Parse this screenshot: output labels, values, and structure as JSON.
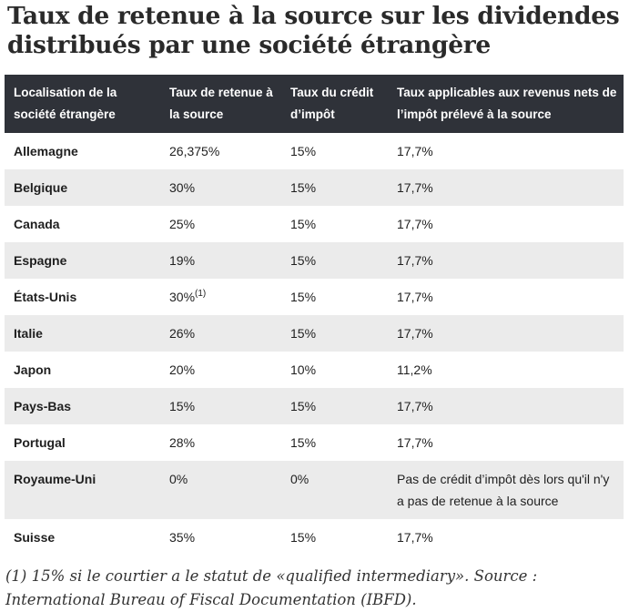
{
  "title": "Taux de retenue à la source sur les dividendes distribués par une société étrangère",
  "table": {
    "headers": [
      "Localisation de la société étrangère",
      "Taux de retenue à la source",
      "Taux du crédit d’impôt",
      "Taux applicables aux revenus nets de l’impôt prélevé à la source"
    ],
    "rows": [
      {
        "country": "Allemagne",
        "withholding": "26,375%",
        "note": "",
        "credit": "15%",
        "net": "17,7%"
      },
      {
        "country": "Belgique",
        "withholding": "30%",
        "note": "",
        "credit": "15%",
        "net": "17,7%"
      },
      {
        "country": "Canada",
        "withholding": "25%",
        "note": "",
        "credit": "15%",
        "net": "17,7%"
      },
      {
        "country": "Espagne",
        "withholding": "19%",
        "note": "",
        "credit": "15%",
        "net": "17,7%"
      },
      {
        "country": "États-Unis",
        "withholding": "30%",
        "note": "(1)",
        "credit": "15%",
        "net": "17,7%"
      },
      {
        "country": "Italie",
        "withholding": "26%",
        "note": "",
        "credit": "15%",
        "net": "17,7%"
      },
      {
        "country": "Japon",
        "withholding": "20%",
        "note": "",
        "credit": "10%",
        "net": "11,2%"
      },
      {
        "country": "Pays-Bas",
        "withholding": "15%",
        "note": "",
        "credit": "15%",
        "net": "17,7%"
      },
      {
        "country": "Portugal",
        "withholding": "28%",
        "note": "",
        "credit": "15%",
        "net": "17,7%"
      },
      {
        "country": "Royaume-Uni",
        "withholding": "0%",
        "note": "",
        "credit": "0%",
        "net": "Pas de crédit d’impôt dès lors qu'il n'y a pas de retenue à la source"
      },
      {
        "country": "Suisse",
        "withholding": "35%",
        "note": "",
        "credit": "15%",
        "net": "17,7%"
      }
    ]
  },
  "footnote": {
    "line1": "(1) 15% si le courtier a le statut de «qualified intermediary». Source :",
    "line2": "International Bureau of Fiscal Documentation (IBFD)."
  }
}
